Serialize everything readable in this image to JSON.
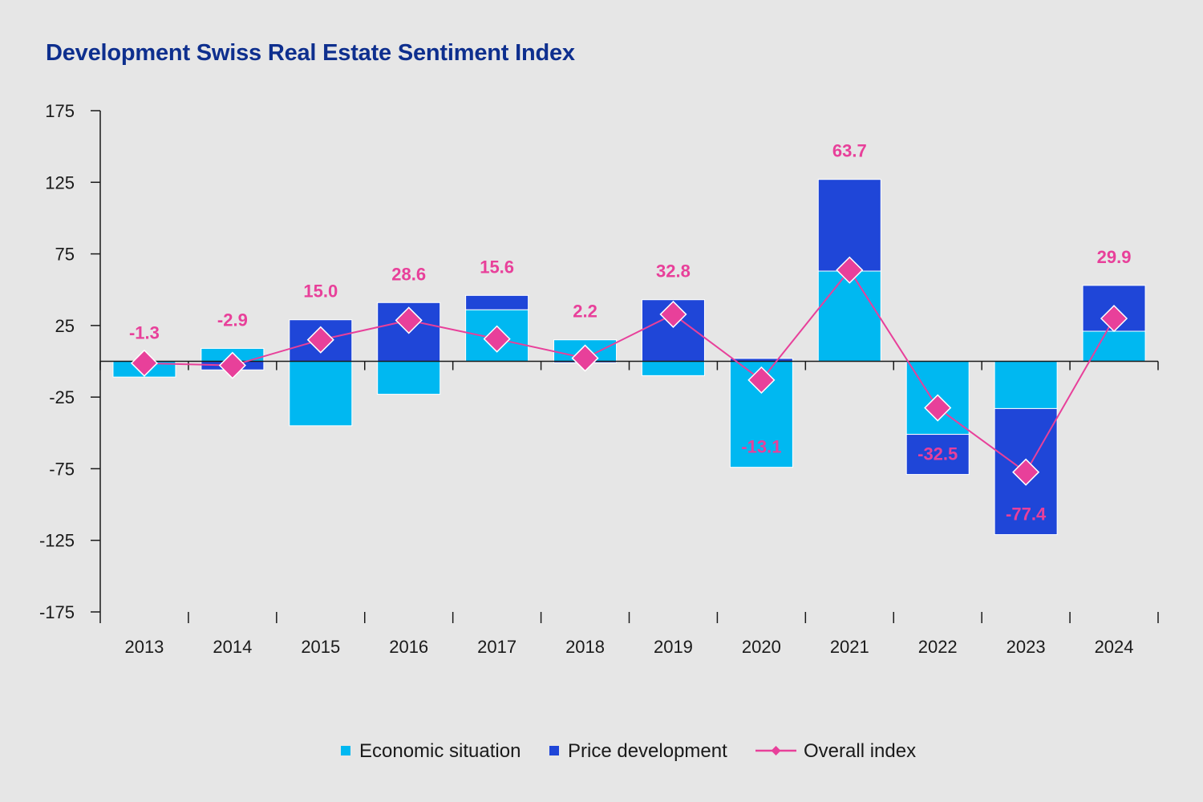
{
  "chart_data": {
    "type": "bar",
    "title": "Development Swiss Real Estate Sentiment Index",
    "xlabel": "",
    "ylabel": "",
    "ylim": [
      -175,
      175
    ],
    "yticks": [
      175,
      125,
      75,
      25,
      -25,
      -75,
      -125,
      -175
    ],
    "categories": [
      "2013",
      "2014",
      "2015",
      "2016",
      "2017",
      "2018",
      "2019",
      "2020",
      "2021",
      "2022",
      "2023",
      "2024"
    ],
    "stacked": true,
    "series": [
      {
        "name": "Economic situation",
        "type": "bar",
        "color": "#00b8f1",
        "values": [
          -11,
          9,
          -45,
          -23,
          36,
          15,
          -10,
          -74,
          63,
          -51,
          -33,
          21
        ]
      },
      {
        "name": "Price development",
        "type": "bar",
        "color": "#1f46d8",
        "values": [
          0,
          -6,
          29,
          41,
          10,
          -1,
          43,
          2,
          64,
          -28,
          -88,
          32
        ]
      },
      {
        "name": "Overall index",
        "type": "line",
        "marker": "diamond",
        "color": "#e8409a",
        "values": [
          -1.3,
          -2.9,
          15.0,
          28.6,
          15.6,
          2.2,
          32.8,
          -13.1,
          63.7,
          -32.5,
          -77.4,
          29.9
        ]
      }
    ],
    "data_labels": [
      "-1.3",
      "-2.9",
      "15.0",
      "28.6",
      "15.6",
      "2.2",
      "32.8",
      "-13.1",
      "63.7",
      "-32.5",
      "-77.4",
      "29.9"
    ],
    "legend": {
      "position": "bottom",
      "entries": [
        "Economic situation",
        "Price development",
        "Overall index"
      ]
    },
    "grid": false
  }
}
